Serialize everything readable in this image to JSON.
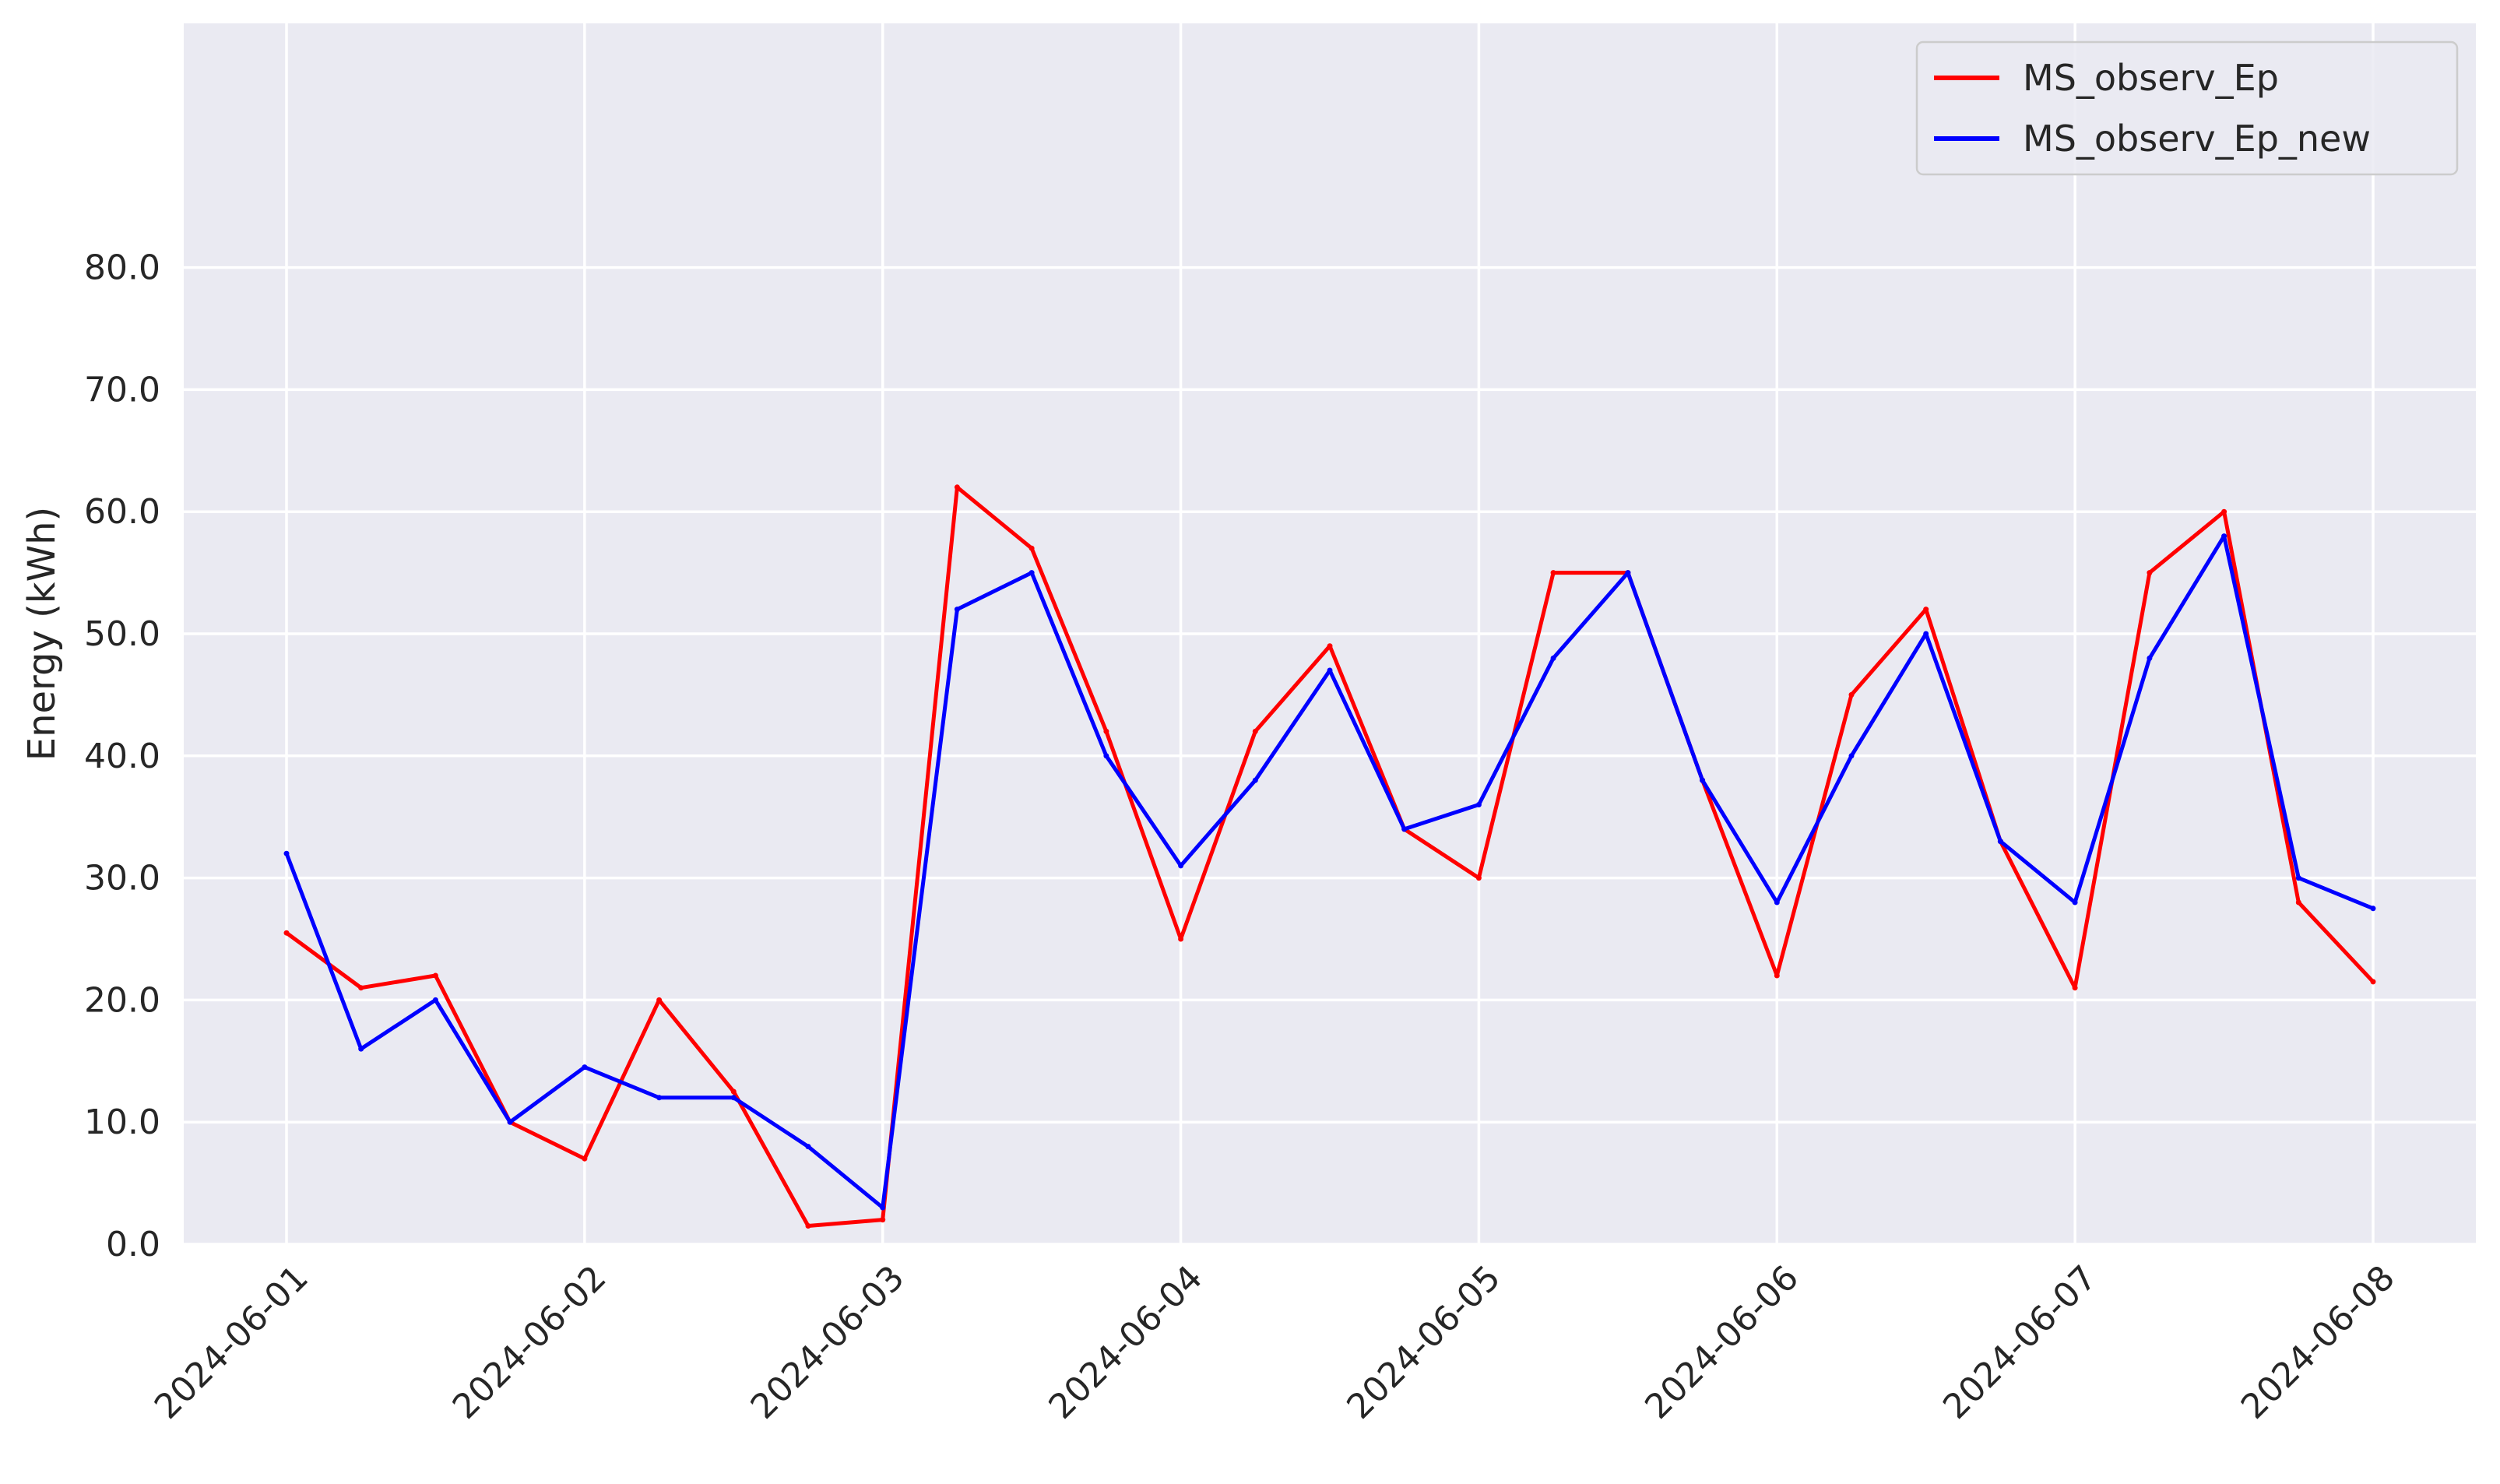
{
  "chart_data": {
    "type": "line",
    "title": "",
    "xlabel": "",
    "ylabel": "Energy (kWh)",
    "x_range": [
      "2024-06-01",
      "2024-06-08"
    ],
    "x_step_hours": 6,
    "ylim": [
      0,
      100
    ],
    "y_ticks": [
      0,
      10,
      20,
      30,
      40,
      50,
      60,
      70,
      80
    ],
    "y_tick_labels": [
      "0.0",
      "10.0",
      "20.0",
      "30.0",
      "40.0",
      "50.0",
      "60.0",
      "70.0",
      "80.0"
    ],
    "x_ticks": [
      "2024-06-01",
      "2024-06-02",
      "2024-06-03",
      "2024-06-04",
      "2024-06-05",
      "2024-06-06",
      "2024-06-07",
      "2024-06-08"
    ],
    "x_tick_labels": [
      "2024-06-01",
      "2024-06-02",
      "2024-06-03",
      "2024-06-04",
      "2024-06-05",
      "2024-06-06",
      "2024-06-07",
      "2024-06-08"
    ],
    "grid": true,
    "legend_position": "top-right",
    "series": [
      {
        "name": "MS_observ_Ep",
        "color": "#ff0000",
        "x": [
          "2024-06-01T00:00",
          "2024-06-01T06:00",
          "2024-06-01T12:00",
          "2024-06-01T18:00",
          "2024-06-02T00:00",
          "2024-06-02T06:00",
          "2024-06-02T12:00",
          "2024-06-02T18:00",
          "2024-06-03T00:00",
          "2024-06-03T06:00",
          "2024-06-03T12:00",
          "2024-06-03T18:00",
          "2024-06-04T00:00",
          "2024-06-04T06:00",
          "2024-06-04T12:00",
          "2024-06-04T18:00",
          "2024-06-05T00:00",
          "2024-06-05T06:00",
          "2024-06-05T12:00",
          "2024-06-05T18:00",
          "2024-06-06T00:00",
          "2024-06-06T06:00",
          "2024-06-06T12:00",
          "2024-06-06T18:00",
          "2024-06-07T00:00",
          "2024-06-07T06:00",
          "2024-06-07T12:00",
          "2024-06-07T18:00",
          "2024-06-08T00:00"
        ],
        "y": [
          25.5,
          21.0,
          22.0,
          10.0,
          7.0,
          20.0,
          12.5,
          1.5,
          2.0,
          62.0,
          57.0,
          42.0,
          25.0,
          42.0,
          49.0,
          34.0,
          30.0,
          55.0,
          55.0,
          38.0,
          22.0,
          45.0,
          52.0,
          33.0,
          21.0,
          55.0,
          60.0,
          28.0,
          21.5
        ]
      },
      {
        "name": "MS_observ_Ep_new",
        "color": "#0000ff",
        "x": [
          "2024-06-01T00:00",
          "2024-06-01T06:00",
          "2024-06-01T12:00",
          "2024-06-01T18:00",
          "2024-06-02T00:00",
          "2024-06-02T06:00",
          "2024-06-02T12:00",
          "2024-06-02T18:00",
          "2024-06-03T00:00",
          "2024-06-03T06:00",
          "2024-06-03T12:00",
          "2024-06-03T18:00",
          "2024-06-04T00:00",
          "2024-06-04T06:00",
          "2024-06-04T12:00",
          "2024-06-04T18:00",
          "2024-06-05T00:00",
          "2024-06-05T06:00",
          "2024-06-05T12:00",
          "2024-06-05T18:00",
          "2024-06-06T00:00",
          "2024-06-06T06:00",
          "2024-06-06T12:00",
          "2024-06-06T18:00",
          "2024-06-07T00:00",
          "2024-06-07T06:00",
          "2024-06-07T12:00",
          "2024-06-07T18:00",
          "2024-06-08T00:00"
        ],
        "y": [
          32.0,
          16.0,
          20.0,
          10.0,
          14.5,
          12.0,
          12.0,
          8.0,
          3.0,
          52.0,
          55.0,
          40.0,
          31.0,
          38.0,
          47.0,
          34.0,
          36.0,
          48.0,
          55.0,
          38.0,
          28.0,
          40.0,
          50.0,
          33.0,
          28.0,
          48.0,
          58.0,
          30.0,
          27.5
        ]
      }
    ]
  }
}
